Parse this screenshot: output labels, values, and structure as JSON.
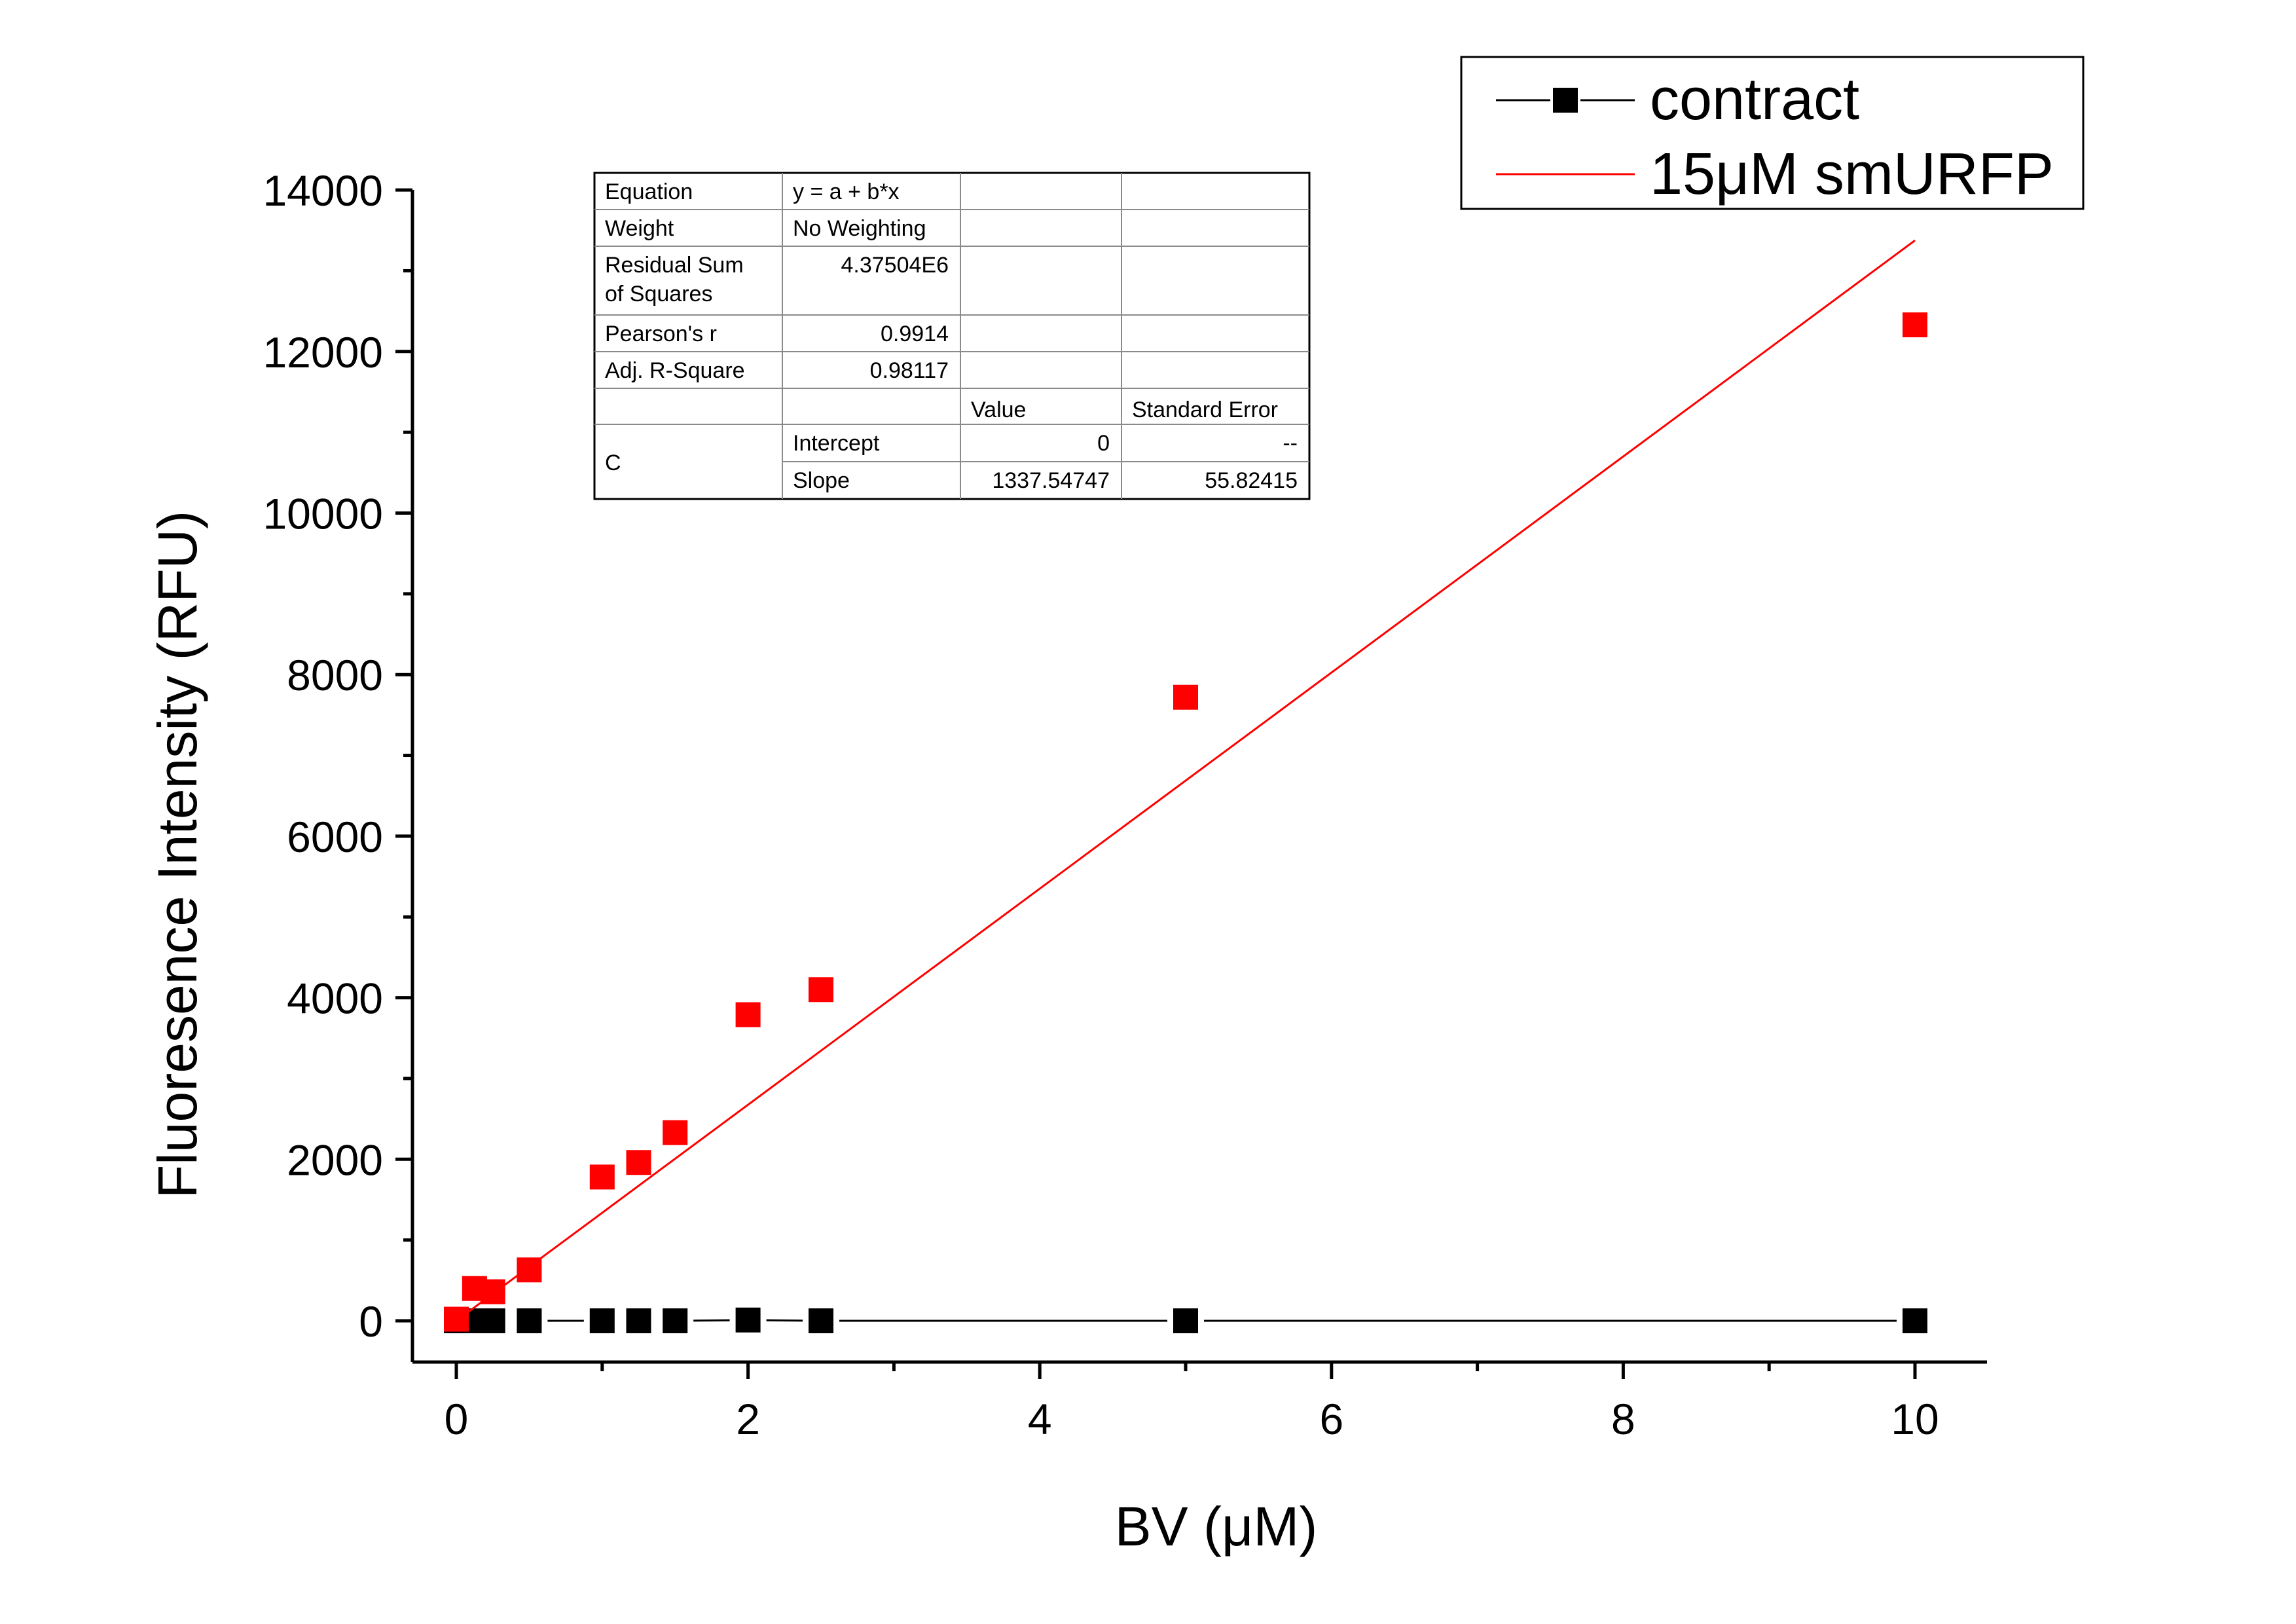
{
  "chart_data": {
    "type": "scatter",
    "xlabel": "BV (μM)",
    "ylabel": "Fluoresence Intensity (RFU)",
    "xlim": [
      -0.3,
      10.5
    ],
    "ylim": [
      -500,
      14000
    ],
    "x_ticks": [
      "0",
      "2",
      "4",
      "6",
      "8",
      "10"
    ],
    "y_ticks": [
      "0",
      "2000",
      "4000",
      "6000",
      "8000",
      "10000",
      "12000",
      "14000"
    ],
    "legend_position": "top-right",
    "series": [
      {
        "name": "contract",
        "style": "line+square",
        "color": "#000000",
        "x": [
          0,
          0.125,
          0.25,
          0.5,
          1,
          1.25,
          1.5,
          2,
          2.5,
          5,
          10
        ],
        "y": [
          0,
          0,
          0,
          0,
          0,
          0,
          0,
          10,
          0,
          0,
          0
        ]
      },
      {
        "name": "15μM smURFP",
        "style": "square",
        "color": "#ff0000",
        "x": [
          0,
          0.125,
          0.25,
          0.5,
          1,
          1.25,
          1.5,
          2,
          2.5,
          5,
          10
        ],
        "y": [
          20,
          400,
          360,
          630,
          1780,
          1960,
          2330,
          3790,
          4100,
          7720,
          12330
        ]
      }
    ],
    "fit": {
      "color": "#ff0000",
      "x_range": [
        0,
        10
      ],
      "intercept": 0,
      "slope": 1337.54747
    },
    "stats_table": {
      "rows": [
        [
          "Equation",
          "y = a + b*x",
          "",
          ""
        ],
        [
          "Weight",
          "No Weighting",
          "",
          ""
        ],
        [
          "Residual Sum\nof Squares",
          "4.37504E6",
          "",
          ""
        ],
        [
          "Pearson's r",
          "0.9914",
          "",
          ""
        ],
        [
          "Adj. R-Square",
          "0.98117",
          "",
          ""
        ],
        [
          "",
          "",
          "Value",
          "Standard Error"
        ],
        [
          "C",
          "Intercept",
          "0",
          "--"
        ],
        [
          "",
          "Slope",
          "1337.54747",
          "55.82415"
        ]
      ]
    }
  }
}
